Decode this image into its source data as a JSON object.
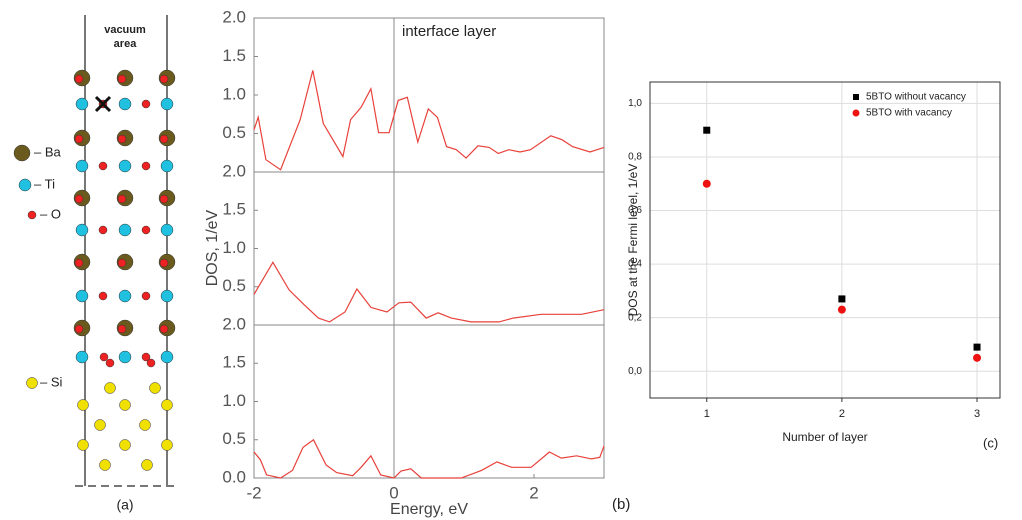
{
  "structure": {
    "vacuum_label": [
      "vacuum",
      "area"
    ],
    "legend": [
      "– Ba",
      "– Ti",
      "– O",
      "– Si"
    ],
    "panel_label": "(a)"
  },
  "chart_data": [
    {
      "type": "line",
      "annotation": "interface layer",
      "color": "#e8413a",
      "reference_line": 0,
      "xlim": [
        -2,
        3
      ],
      "ylim": [
        0,
        2
      ],
      "yticks": [
        0.5,
        {
          "value": 1,
          "label": "1.0"
        },
        1.5,
        {
          "value": 2,
          "label": "2.0"
        }
      ],
      "x": [
        -2,
        -1.94,
        -1.83,
        -1.62,
        -1.34,
        -1.16,
        -1.01,
        -0.73,
        -0.62,
        -0.47,
        -0.33,
        -0.22,
        -0.07,
        0.06,
        0.19,
        0.34,
        0.49,
        0.62,
        0.75,
        0.89,
        1.03,
        1.2,
        1.36,
        1.49,
        1.64,
        1.8,
        1.95,
        2.24,
        2.4,
        2.55,
        2.8,
        3.0
      ],
      "values": [
        0.55,
        0.71,
        0.16,
        0.03,
        0.68,
        1.32,
        0.63,
        0.2,
        0.68,
        0.84,
        1.08,
        0.51,
        0.51,
        0.93,
        0.97,
        0.39,
        0.82,
        0.71,
        0.33,
        0.29,
        0.18,
        0.34,
        0.32,
        0.24,
        0.29,
        0.26,
        0.29,
        0.47,
        0.42,
        0.33,
        0.26,
        0.32
      ]
    },
    {
      "type": "line",
      "y_label": "DOS, 1/eV",
      "color": "#e8413a",
      "reference_line": 0,
      "xlim": [
        -2,
        3
      ],
      "ylim": [
        0,
        2
      ],
      "yticks": [
        0.5,
        {
          "value": 1,
          "label": "1.0"
        },
        1.5,
        {
          "value": 2,
          "label": "2.0"
        }
      ],
      "x": [
        -2,
        -1.73,
        -1.5,
        -1.29,
        -1.08,
        -0.92,
        -0.7,
        -0.53,
        -0.33,
        -0.1,
        0.07,
        0.24,
        0.46,
        0.63,
        0.82,
        1.1,
        1.5,
        1.7,
        2.1,
        2.68,
        3.0
      ],
      "values": [
        0.4,
        0.82,
        0.46,
        0.27,
        0.09,
        0.04,
        0.17,
        0.47,
        0.23,
        0.17,
        0.29,
        0.3,
        0.09,
        0.16,
        0.09,
        0.04,
        0.04,
        0.09,
        0.14,
        0.14,
        0.2
      ]
    },
    {
      "type": "line",
      "x_label": "Energy, eV",
      "panel_label": "(b)",
      "color": "#e8413a",
      "reference_line": 0,
      "xlim": [
        -2,
        3
      ],
      "ylim": [
        0,
        2
      ],
      "xticks": [
        -2,
        0,
        2
      ],
      "yticks": [
        {
          "value": 0,
          "label": "0.0"
        },
        0.5,
        {
          "value": 1,
          "label": "1.0"
        },
        1.5,
        {
          "value": 2,
          "label": "2.0"
        }
      ],
      "x": [
        -2,
        -1.91,
        -1.82,
        -1.62,
        -1.45,
        -1.3,
        -1.15,
        -0.97,
        -0.82,
        -0.59,
        -0.47,
        -0.33,
        -0.19,
        0,
        0.1,
        0.24,
        0.39,
        0.96,
        1.25,
        1.47,
        1.68,
        1.96,
        2.22,
        2.39,
        2.61,
        2.82,
        2.94,
        3.0
      ],
      "values": [
        0.34,
        0.24,
        0.04,
        0,
        0.1,
        0.4,
        0.5,
        0.17,
        0.07,
        0.03,
        0.14,
        0.29,
        0.04,
        0,
        0.09,
        0.12,
        0,
        0,
        0.1,
        0.21,
        0.14,
        0.14,
        0.34,
        0.26,
        0.29,
        0.25,
        0.27,
        0.42
      ]
    },
    {
      "type": "scatter",
      "x_label": "Number of layer",
      "y_label": "DOS at the Fermi level, 1/eV",
      "panel_label": "(c)",
      "grid": true,
      "legend": "upper right",
      "xlim": [
        0.58,
        3.17
      ],
      "ylim": [
        -0.1,
        1.08
      ],
      "xticks": [
        1,
        2,
        3
      ],
      "yticks": [
        {
          "value": 0,
          "label": "0,0"
        },
        {
          "value": 0.2,
          "label": "0,2"
        },
        {
          "value": 0.4,
          "label": "0,4"
        },
        {
          "value": 0.6,
          "label": "0,6"
        },
        {
          "value": 0.8,
          "label": "0,8"
        },
        {
          "value": 1,
          "label": "1,0"
        }
      ],
      "x": [
        1,
        2,
        3
      ],
      "series": [
        {
          "name": "5BTO without vacancy",
          "color": "#000000",
          "marker": "square",
          "values": [
            0.9,
            0.27,
            0.09
          ]
        },
        {
          "name": "5BTO with vacancy",
          "color": "#ee1111",
          "marker": "circle",
          "values": [
            0.7,
            0.23,
            0.05
          ]
        }
      ]
    }
  ]
}
